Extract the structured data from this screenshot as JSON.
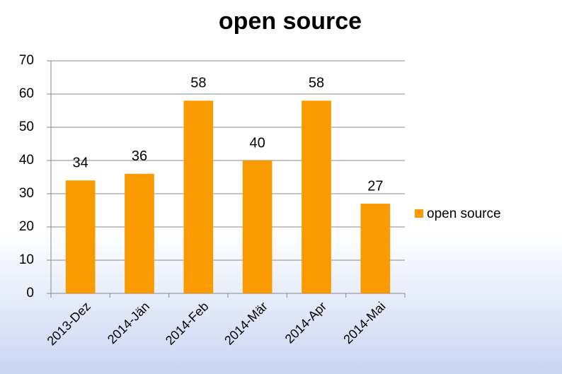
{
  "chart_data": {
    "type": "bar",
    "title": "open source",
    "categories": [
      "2013-Dez",
      "2014-Jän",
      "2014-Feb",
      "2014-Mär",
      "2014-Apr",
      "2014-Mai"
    ],
    "series": [
      {
        "name": "open source",
        "color": "#f99a00",
        "values": [
          34,
          36,
          58,
          40,
          58,
          27
        ]
      }
    ],
    "ylim": [
      0,
      70
    ],
    "yticks": [
      0,
      10,
      20,
      30,
      40,
      50,
      60,
      70
    ],
    "grid": true,
    "legend": "right"
  }
}
